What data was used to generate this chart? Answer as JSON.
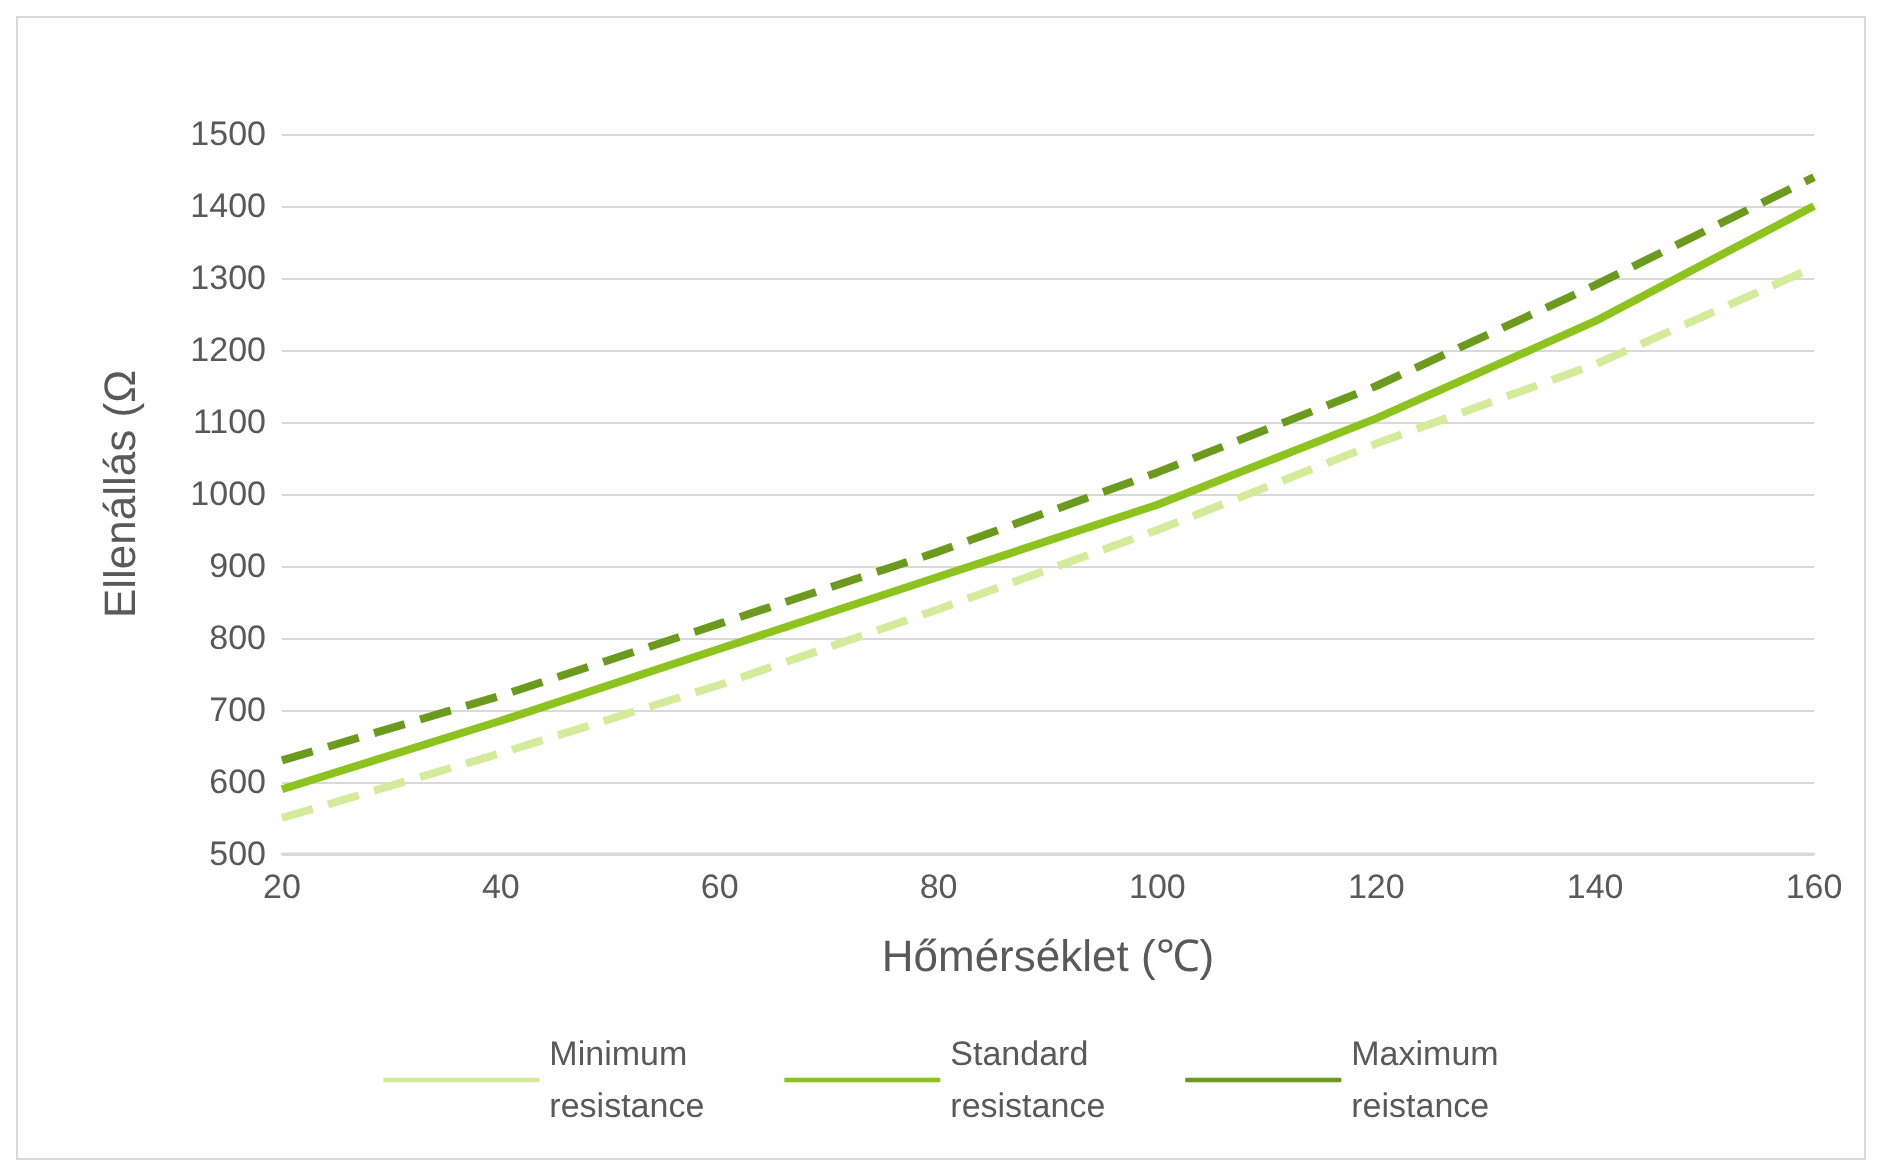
{
  "chart_data": {
    "type": "line",
    "xlabel": "Hőmérséklet (℃)",
    "ylabel": "Ellenállás (Ω",
    "x": [
      20,
      40,
      60,
      80,
      100,
      120,
      140,
      160
    ],
    "xlim": [
      20,
      160
    ],
    "xticks": [
      20,
      40,
      60,
      80,
      100,
      120,
      140,
      160
    ],
    "ylim": [
      500,
      1500
    ],
    "yticks": [
      500,
      600,
      700,
      800,
      900,
      1000,
      1100,
      1200,
      1300,
      1400,
      1500
    ],
    "grid": "y",
    "legend": "bottom",
    "series": [
      {
        "name": "Minimum\nresistance",
        "color": "#d4eb9b",
        "line_style": "dashed",
        "values": [
          550,
          640,
          735,
          840,
          950,
          1070,
          1180,
          1315
        ]
      },
      {
        "name": "Standard\nresistance",
        "color": "#8dc21f",
        "line_style": "solid",
        "values": [
          590,
          685,
          785,
          885,
          985,
          1105,
          1240,
          1400
        ]
      },
      {
        "name": "Maximum\nreistance",
        "color": "#6b9a1f",
        "line_style": "dashed",
        "values": [
          630,
          720,
          820,
          920,
          1030,
          1150,
          1290,
          1440
        ]
      }
    ]
  }
}
